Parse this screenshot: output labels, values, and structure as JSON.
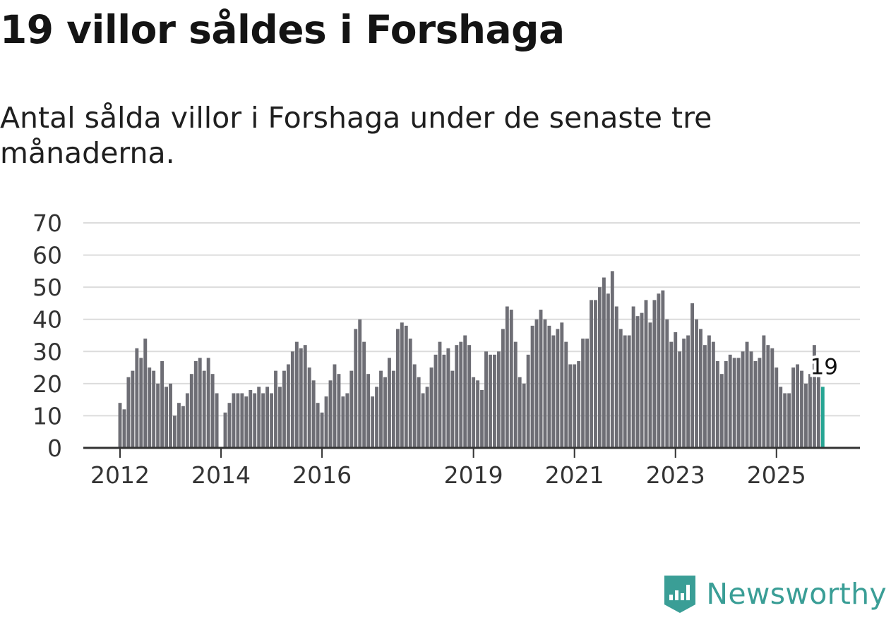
{
  "header": {
    "title": "19 villor såldes i Forshaga",
    "subtitle": "Antal sålda villor i Forshaga under de senaste tre månaderna."
  },
  "brand": {
    "name": "Newsworthy",
    "icon": "newsworthy-logo-icon",
    "color": "#3a9e96"
  },
  "colors": {
    "bar": "#6e6e75",
    "highlight": "#27a594",
    "grid": "#dcdcdc",
    "axis": "#333333",
    "text": "#333333"
  },
  "chart_data": {
    "type": "bar",
    "title": "19 villor såldes i Forshaga",
    "subtitle": "Antal sålda villor i Forshaga under de senaste tre månaderna.",
    "xlabel": "",
    "ylabel": "",
    "ylim": [
      0,
      70
    ],
    "yticks": [
      0,
      10,
      20,
      30,
      40,
      50,
      60,
      70
    ],
    "grid": true,
    "x_start": "2012-01",
    "x_frequency": "monthly",
    "xtick_labels": [
      "2012",
      "2014",
      "2016",
      "2019",
      "2021",
      "2023",
      "2025"
    ],
    "values": [
      14,
      12,
      22,
      24,
      31,
      28,
      34,
      25,
      24,
      20,
      27,
      19,
      20,
      10,
      14,
      13,
      17,
      23,
      27,
      28,
      24,
      28,
      23,
      17,
      null,
      11,
      14,
      17,
      17,
      17,
      16,
      18,
      17,
      19,
      17,
      19,
      17,
      24,
      19,
      24,
      26,
      30,
      33,
      31,
      32,
      25,
      21,
      14,
      11,
      16,
      21,
      26,
      23,
      16,
      17,
      24,
      37,
      40,
      33,
      23,
      16,
      19,
      24,
      22,
      28,
      24,
      37,
      39,
      38,
      34,
      26,
      22,
      17,
      19,
      25,
      29,
      33,
      29,
      31,
      24,
      32,
      33,
      35,
      32,
      22,
      21,
      18,
      30,
      29,
      29,
      30,
      37,
      44,
      43,
      33,
      22,
      20,
      29,
      38,
      40,
      43,
      40,
      38,
      35,
      37,
      39,
      33,
      26,
      26,
      27,
      34,
      34,
      46,
      46,
      50,
      53,
      48,
      55,
      44,
      37,
      35,
      35,
      44,
      41,
      42,
      46,
      39,
      46,
      48,
      49,
      40,
      33,
      36,
      30,
      34,
      35,
      45,
      40,
      37,
      32,
      35,
      33,
      27,
      23,
      27,
      29,
      28,
      28,
      30,
      33,
      30,
      27,
      28,
      35,
      32,
      31,
      25,
      19,
      17,
      17,
      25,
      26,
      24,
      20,
      23,
      32,
      22,
      19
    ],
    "highlight": {
      "label": "19",
      "value": 19,
      "index": 167
    }
  }
}
